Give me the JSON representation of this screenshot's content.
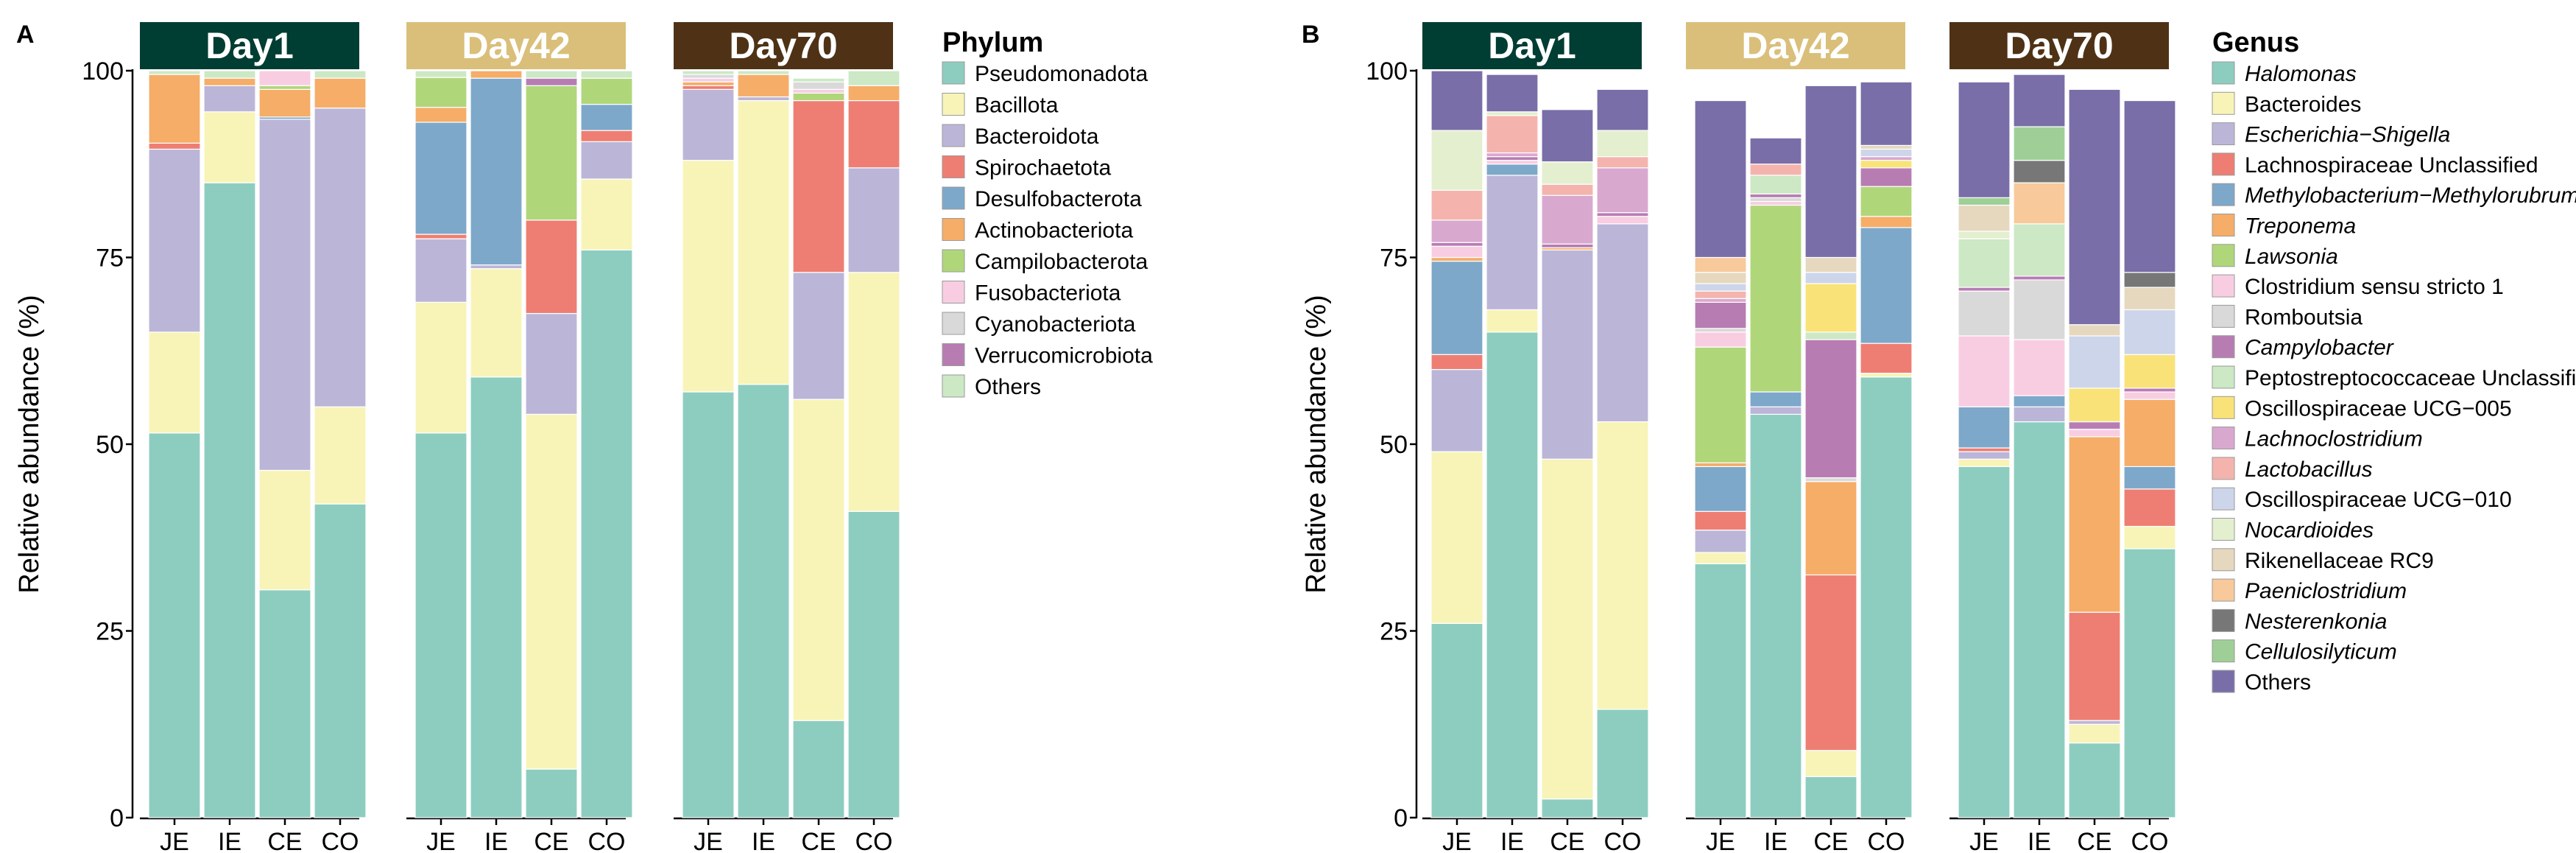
{
  "chart_data": [
    {
      "type": "bar",
      "stacked": true,
      "panel_label": "A",
      "ylabel": "Relative abundance (%)",
      "ylim": [
        0,
        100
      ],
      "yticks": [
        0,
        25,
        50,
        75,
        100
      ],
      "facets": [
        "Day1",
        "Day42",
        "Day70"
      ],
      "facet_colors": [
        "#003d33",
        "#d9bf7a",
        "#4f3216"
      ],
      "categories": [
        "JE",
        "IE",
        "CE",
        "CO"
      ],
      "legend_title": "Phylum",
      "legend_position": "right",
      "series": [
        {
          "name": "Pseudomonadota",
          "color": "#8dcdc0",
          "italic": false,
          "values": [
            [
              51.5,
              85,
              30.5,
              42
            ],
            [
              51.5,
              59,
              6.5,
              76
            ],
            [
              57,
              58,
              13,
              41
            ]
          ]
        },
        {
          "name": "Bacillota",
          "color": "#f8f4b8",
          "italic": false,
          "values": [
            [
              13.5,
              9.5,
              16,
              13
            ],
            [
              17.5,
              14.5,
              47.5,
              9.5
            ],
            [
              31,
              38,
              43,
              32
            ]
          ]
        },
        {
          "name": "Bacteroidota",
          "color": "#bbb6d8",
          "italic": false,
          "values": [
            [
              24.5,
              3.5,
              47,
              40
            ],
            [
              8.5,
              0.5,
              13.5,
              5
            ],
            [
              9.5,
              0.5,
              17,
              14
            ]
          ]
        },
        {
          "name": "Spirochaetota",
          "color": "#ee7e73",
          "italic": false,
          "values": [
            [
              0.8,
              0,
              0,
              0
            ],
            [
              0.6,
              0,
              12.5,
              1.5
            ],
            [
              0.5,
              0,
              23,
              9
            ]
          ]
        },
        {
          "name": "Desulfobacterota",
          "color": "#7da8ca",
          "italic": false,
          "values": [
            [
              0,
              0,
              0.3,
              0
            ],
            [
              15,
              25,
              0,
              3.5
            ],
            [
              0,
              0,
              0,
              0
            ]
          ]
        },
        {
          "name": "Actinobacteriota",
          "color": "#f5ad68",
          "italic": false,
          "values": [
            [
              9.2,
              1,
              3.7,
              4
            ],
            [
              2,
              1,
              0,
              0
            ],
            [
              0.5,
              3,
              0,
              2
            ]
          ]
        },
        {
          "name": "Campilobacterota",
          "color": "#b0d67a",
          "italic": false,
          "values": [
            [
              0,
              0,
              0.5,
              0
            ],
            [
              4,
              0,
              18,
              3.5
            ],
            [
              0,
              0,
              1,
              0
            ]
          ]
        },
        {
          "name": "Fusobacteriota",
          "color": "#f8cde2",
          "italic": false,
          "values": [
            [
              0,
              0,
              2,
              0
            ],
            [
              0,
              0,
              0,
              0
            ],
            [
              0.5,
              0,
              0.5,
              0
            ]
          ]
        },
        {
          "name": "Cyanobacteriota",
          "color": "#d9d9d9",
          "italic": false,
          "values": [
            [
              0,
              0,
              0,
              0
            ],
            [
              0,
              0,
              0,
              0
            ],
            [
              0.5,
              0,
              1,
              0
            ]
          ]
        },
        {
          "name": "Verrucomicrobiota",
          "color": "#b77db3",
          "italic": false,
          "values": [
            [
              0,
              0,
              0,
              0
            ],
            [
              0,
              0,
              1,
              0
            ],
            [
              0,
              0,
              0,
              0
            ]
          ]
        },
        {
          "name": "Others",
          "color": "#cce8c5",
          "italic": false,
          "values": [
            [
              0.5,
              1,
              0,
              1
            ],
            [
              0.9,
              0,
              1,
              1
            ],
            [
              0.5,
              0.5,
              0.5,
              2
            ]
          ]
        }
      ]
    },
    {
      "type": "bar",
      "stacked": true,
      "panel_label": "B",
      "ylabel": "Relative abundance (%)",
      "ylim": [
        0,
        100
      ],
      "yticks": [
        0,
        25,
        50,
        75,
        100
      ],
      "facets": [
        "Day1",
        "Day42",
        "Day70"
      ],
      "facet_colors": [
        "#003d33",
        "#d9bf7a",
        "#4f3216"
      ],
      "categories": [
        "JE",
        "IE",
        "CE",
        "CO"
      ],
      "legend_title": "Genus",
      "legend_position": "right",
      "series": [
        {
          "name": "Halomonas",
          "color": "#8dcdc0",
          "italic": true,
          "values": [
            [
              26,
              65,
              2.5,
              14.5
            ],
            [
              34,
              54,
              5.5,
              59
            ],
            [
              47,
              53,
              10,
              36
            ]
          ]
        },
        {
          "name": "Bacteroides",
          "color": "#f8f4b8",
          "italic": false,
          "values": [
            [
              23,
              3,
              45.5,
              38.5
            ],
            [
              1.5,
              0,
              3.5,
              0.5
            ],
            [
              1,
              0,
              2.5,
              3
            ]
          ]
        },
        {
          "name": "Escherichia−Shigella",
          "color": "#bbb6d8",
          "italic": true,
          "values": [
            [
              11,
              18,
              28,
              26.5
            ],
            [
              3,
              1,
              0,
              0
            ],
            [
              1,
              2,
              0.5,
              0
            ]
          ]
        },
        {
          "name": "Lachnospiraceae Unclassified",
          "color": "#ee7e73",
          "italic": false,
          "values": [
            [
              2,
              0,
              0,
              0
            ],
            [
              2.5,
              0,
              23.5,
              4
            ],
            [
              0.5,
              0,
              14.5,
              5
            ]
          ]
        },
        {
          "name": "Methylobacterium−Methylorubrum",
          "color": "#7da8ca",
          "italic": true,
          "values": [
            [
              12.5,
              1.5,
              0,
              0
            ],
            [
              6,
              2,
              0,
              15.5
            ],
            [
              5.5,
              1.5,
              0,
              3
            ]
          ]
        },
        {
          "name": "Treponema",
          "color": "#f5ad68",
          "italic": true,
          "values": [
            [
              0.5,
              0,
              0.3,
              0
            ],
            [
              0.5,
              0,
              12.5,
              1.5
            ],
            [
              0,
              0,
              23.5,
              9
            ]
          ]
        },
        {
          "name": "Lawsonia",
          "color": "#b0d67a",
          "italic": true,
          "values": [
            [
              0,
              0,
              0,
              0
            ],
            [
              15.5,
              25,
              0,
              4
            ],
            [
              0,
              0,
              0,
              0
            ]
          ]
        },
        {
          "name": "Clostridium sensu stricto 1",
          "color": "#f8cde2",
          "italic": false,
          "values": [
            [
              1.5,
              0.5,
              0,
              1
            ],
            [
              2,
              0.5,
              0,
              0
            ],
            [
              9.5,
              7.5,
              1,
              1
            ]
          ]
        },
        {
          "name": "Romboutsia",
          "color": "#d9d9d9",
          "italic": false,
          "values": [
            [
              0,
              0,
              0,
              0
            ],
            [
              0.5,
              0.5,
              0.5,
              0
            ],
            [
              6,
              8,
              0,
              0
            ]
          ]
        },
        {
          "name": "Campylobacter",
          "color": "#b77db3",
          "italic": true,
          "values": [
            [
              0.5,
              0.5,
              0.5,
              0.5
            ],
            [
              3.5,
              0.5,
              18.5,
              2.5
            ],
            [
              0.5,
              0.5,
              1,
              0.5
            ]
          ]
        },
        {
          "name": "Peptostreptococcaceae Unclassified",
          "color": "#cce8c5",
          "italic": false,
          "values": [
            [
              0,
              0,
              0,
              0
            ],
            [
              0,
              2.5,
              1,
              0
            ],
            [
              6.5,
              7,
              0,
              0
            ]
          ]
        },
        {
          "name": "Oscillospiraceae UCG−005",
          "color": "#f9e378",
          "italic": false,
          "values": [
            [
              0,
              0,
              0,
              0
            ],
            [
              0,
              0,
              6.5,
              1
            ],
            [
              0,
              0,
              4.5,
              4.5
            ]
          ]
        },
        {
          "name": "Lachnoclostridium",
          "color": "#d9a8cf",
          "italic": true,
          "values": [
            [
              3,
              0.5,
              6.5,
              6
            ],
            [
              0.5,
              0,
              0,
              0.5
            ],
            [
              0,
              0,
              0,
              0
            ]
          ]
        },
        {
          "name": "Lactobacillus",
          "color": "#f4b4ad",
          "italic": true,
          "values": [
            [
              4,
              5,
              1.5,
              1.5
            ],
            [
              1,
              1.5,
              0,
              0
            ],
            [
              0,
              0,
              0,
              0
            ]
          ]
        },
        {
          "name": "Oscillospiraceae UCG−010",
          "color": "#cdd5ea",
          "italic": false,
          "values": [
            [
              0,
              0,
              0,
              0
            ],
            [
              1,
              0,
              1.5,
              1
            ],
            [
              0,
              0,
              7,
              6
            ]
          ]
        },
        {
          "name": "Nocardioides",
          "color": "#e3efcf",
          "italic": true,
          "values": [
            [
              8,
              0.5,
              3,
              3.5
            ],
            [
              0,
              0,
              0,
              0
            ],
            [
              1,
              0,
              0,
              0
            ]
          ]
        },
        {
          "name": "Rikenellaceae RC9",
          "color": "#e6d8be",
          "italic": false,
          "values": [
            [
              0,
              0,
              0,
              0
            ],
            [
              1.5,
              0,
              2,
              0.5
            ],
            [
              3.5,
              0,
              1.5,
              3
            ]
          ]
        },
        {
          "name": "Paeniclostridium",
          "color": "#f7c99b",
          "italic": true,
          "values": [
            [
              0,
              0,
              0,
              0
            ],
            [
              2,
              0,
              0,
              0
            ],
            [
              0,
              5.5,
              0,
              0
            ]
          ]
        },
        {
          "name": "Nesterenkonia",
          "color": "#777777",
          "italic": true,
          "values": [
            [
              0,
              0,
              0,
              0
            ],
            [
              0,
              0,
              0,
              0
            ],
            [
              0,
              3,
              0,
              2
            ]
          ]
        },
        {
          "name": "Cellulosilyticum",
          "color": "#9fcf97",
          "italic": true,
          "values": [
            [
              0,
              0,
              0,
              0
            ],
            [
              0,
              0,
              0,
              0
            ],
            [
              1,
              4.5,
              0,
              0
            ]
          ]
        },
        {
          "name": "Others",
          "color": "#7a6ea8",
          "italic": false,
          "values": [
            [
              8,
              5,
              7,
              5.5
            ],
            [
              21,
              3.5,
              23,
              8.5
            ],
            [
              15.5,
              7,
              31.5,
              23
            ]
          ]
        }
      ]
    }
  ]
}
